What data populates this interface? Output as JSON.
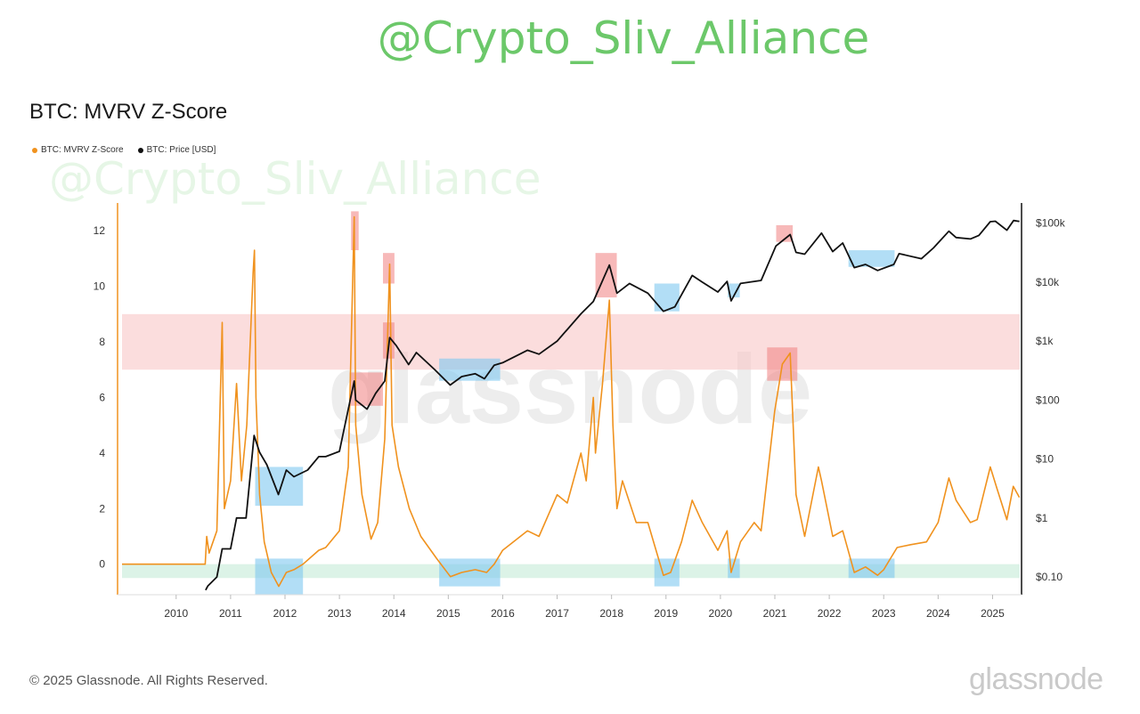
{
  "watermark": "@Crypto_Sliv_Alliance",
  "footer": {
    "copyright": "© 2025 Glassnode. All Rights Reserved.",
    "brand": "glassnode"
  },
  "chart_data": {
    "type": "line",
    "title": "BTC: MVRV Z-Score",
    "background_watermark": "glassnode",
    "legend_position": "top-left",
    "grid": false,
    "x_ticks": [
      "2010",
      "2011",
      "2012",
      "2013",
      "2014",
      "2015",
      "2016",
      "2017",
      "2018",
      "2019",
      "2020",
      "2021",
      "2022",
      "2023",
      "2024",
      "2025"
    ],
    "y_left_ticks": [
      "0",
      "2",
      "4",
      "6",
      "8",
      "10",
      "12"
    ],
    "y_left_range": [
      -1.1,
      13.0
    ],
    "y_right_ticks": [
      "$0.10",
      "$1",
      "$10",
      "$100",
      "$1k",
      "$10k",
      "$100k"
    ],
    "y_right_range_usd": [
      0.05,
      220000
    ],
    "colors": {
      "zscore": "#f0921e",
      "price": "#111111",
      "top_zone": "#f9c7c7",
      "bottom_zone": "#cdeedd",
      "top_marker": "#f08080",
      "bottom_marker": "#7ec8f0"
    },
    "zones": [
      {
        "kind": "top",
        "z_from": 7.0,
        "z_to": 9.0
      },
      {
        "kind": "bottom",
        "z_from": -0.5,
        "z_to": 0.0
      }
    ],
    "series": [
      {
        "name": "BTC: MVRV Z-Score",
        "axis": "left",
        "points": [
          [
            "2009-01-03",
            0
          ],
          [
            "2010-07-15",
            0
          ],
          [
            "2010-07-25",
            1.0
          ],
          [
            "2010-08-10",
            0.4
          ],
          [
            "2010-10-01",
            1.2
          ],
          [
            "2010-11-06",
            8.7
          ],
          [
            "2010-11-20",
            2.0
          ],
          [
            "2011-01-01",
            3.0
          ],
          [
            "2011-02-10",
            6.5
          ],
          [
            "2011-03-15",
            3.0
          ],
          [
            "2011-04-20",
            5.0
          ],
          [
            "2011-06-01",
            10.5
          ],
          [
            "2011-06-10",
            11.3
          ],
          [
            "2011-06-20",
            6.0
          ],
          [
            "2011-07-15",
            2.5
          ],
          [
            "2011-08-15",
            0.8
          ],
          [
            "2011-10-01",
            -0.3
          ],
          [
            "2011-11-20",
            -0.8
          ],
          [
            "2012-01-10",
            -0.3
          ],
          [
            "2012-03-01",
            -0.2
          ],
          [
            "2012-05-01",
            0.0
          ],
          [
            "2012-08-15",
            0.5
          ],
          [
            "2012-10-01",
            0.6
          ],
          [
            "2013-01-01",
            1.2
          ],
          [
            "2013-03-01",
            3.5
          ],
          [
            "2013-04-10",
            12.5
          ],
          [
            "2013-04-20",
            5.0
          ],
          [
            "2013-06-01",
            2.5
          ],
          [
            "2013-08-01",
            0.9
          ],
          [
            "2013-09-15",
            1.5
          ],
          [
            "2013-11-01",
            4.5
          ],
          [
            "2013-12-04",
            10.8
          ],
          [
            "2013-12-20",
            5.0
          ],
          [
            "2014-02-01",
            3.5
          ],
          [
            "2014-04-15",
            2.0
          ],
          [
            "2014-07-01",
            1.0
          ],
          [
            "2014-10-15",
            0.2
          ],
          [
            "2015-01-15",
            -0.45
          ],
          [
            "2015-04-01",
            -0.3
          ],
          [
            "2015-07-01",
            -0.2
          ],
          [
            "2015-09-15",
            -0.3
          ],
          [
            "2015-11-05",
            0.0
          ],
          [
            "2016-01-01",
            0.5
          ],
          [
            "2016-06-15",
            1.2
          ],
          [
            "2016-09-01",
            1.0
          ],
          [
            "2017-01-01",
            2.5
          ],
          [
            "2017-03-10",
            2.2
          ],
          [
            "2017-06-10",
            4.0
          ],
          [
            "2017-07-15",
            3.0
          ],
          [
            "2017-09-01",
            6.0
          ],
          [
            "2017-09-15",
            4.0
          ],
          [
            "2017-11-01",
            6.5
          ],
          [
            "2017-12-17",
            9.5
          ],
          [
            "2018-01-10",
            5.0
          ],
          [
            "2018-02-06",
            2.0
          ],
          [
            "2018-03-15",
            3.0
          ],
          [
            "2018-06-15",
            1.5
          ],
          [
            "2018-09-01",
            1.5
          ],
          [
            "2018-12-15",
            -0.4
          ],
          [
            "2019-02-01",
            -0.3
          ],
          [
            "2019-04-15",
            0.8
          ],
          [
            "2019-06-26",
            2.3
          ],
          [
            "2019-09-01",
            1.5
          ],
          [
            "2019-12-15",
            0.5
          ],
          [
            "2020-02-15",
            1.2
          ],
          [
            "2020-03-13",
            -0.3
          ],
          [
            "2020-05-15",
            0.8
          ],
          [
            "2020-08-15",
            1.5
          ],
          [
            "2020-10-01",
            1.2
          ],
          [
            "2020-12-31",
            5.5
          ],
          [
            "2021-02-20",
            7.2
          ],
          [
            "2021-04-14",
            7.6
          ],
          [
            "2021-05-23",
            2.5
          ],
          [
            "2021-07-20",
            1.0
          ],
          [
            "2021-10-20",
            3.5
          ],
          [
            "2021-11-10",
            3.0
          ],
          [
            "2022-01-24",
            1.0
          ],
          [
            "2022-04-01",
            1.2
          ],
          [
            "2022-06-18",
            -0.3
          ],
          [
            "2022-09-01",
            -0.1
          ],
          [
            "2022-11-21",
            -0.4
          ],
          [
            "2023-01-01",
            -0.2
          ],
          [
            "2023-04-01",
            0.6
          ],
          [
            "2023-07-01",
            0.7
          ],
          [
            "2023-10-15",
            0.8
          ],
          [
            "2024-01-01",
            1.5
          ],
          [
            "2024-03-13",
            3.1
          ],
          [
            "2024-05-01",
            2.3
          ],
          [
            "2024-08-05",
            1.5
          ],
          [
            "2024-09-20",
            1.6
          ],
          [
            "2024-12-17",
            3.5
          ],
          [
            "2025-02-01",
            2.7
          ],
          [
            "2025-04-07",
            1.6
          ],
          [
            "2025-05-20",
            2.8
          ],
          [
            "2025-06-30",
            2.4
          ]
        ]
      },
      {
        "name": "BTC: Price [USD]",
        "axis": "right",
        "points": [
          [
            "2010-07-18",
            0.06
          ],
          [
            "2010-08-01",
            0.07
          ],
          [
            "2010-10-01",
            0.1
          ],
          [
            "2010-11-06",
            0.3
          ],
          [
            "2011-01-01",
            0.3
          ],
          [
            "2011-02-10",
            1.0
          ],
          [
            "2011-04-15",
            1.0
          ],
          [
            "2011-06-08",
            25
          ],
          [
            "2011-07-15",
            13
          ],
          [
            "2011-09-01",
            8
          ],
          [
            "2011-11-18",
            2.5
          ],
          [
            "2012-01-10",
            6.5
          ],
          [
            "2012-03-01",
            5.0
          ],
          [
            "2012-06-01",
            6.5
          ],
          [
            "2012-08-15",
            11
          ],
          [
            "2012-10-01",
            11
          ],
          [
            "2013-01-01",
            13.5
          ],
          [
            "2013-04-10",
            210
          ],
          [
            "2013-04-20",
            100
          ],
          [
            "2013-07-05",
            70
          ],
          [
            "2013-09-01",
            130
          ],
          [
            "2013-11-01",
            210
          ],
          [
            "2013-12-04",
            1150
          ],
          [
            "2014-01-15",
            850
          ],
          [
            "2014-04-10",
            400
          ],
          [
            "2014-06-01",
            640
          ],
          [
            "2014-10-01",
            330
          ],
          [
            "2015-01-14",
            180
          ],
          [
            "2015-04-01",
            250
          ],
          [
            "2015-07-01",
            280
          ],
          [
            "2015-09-01",
            230
          ],
          [
            "2015-11-05",
            390
          ],
          [
            "2016-01-01",
            430
          ],
          [
            "2016-06-15",
            700
          ],
          [
            "2016-09-01",
            600
          ],
          [
            "2017-01-01",
            1000
          ],
          [
            "2017-06-10",
            2900
          ],
          [
            "2017-09-01",
            4700
          ],
          [
            "2017-12-17",
            19500
          ],
          [
            "2018-02-06",
            6500
          ],
          [
            "2018-05-01",
            9500
          ],
          [
            "2018-09-01",
            6500
          ],
          [
            "2018-12-15",
            3200
          ],
          [
            "2019-03-01",
            3800
          ],
          [
            "2019-06-26",
            13000
          ],
          [
            "2019-09-01",
            10000
          ],
          [
            "2019-12-15",
            6800
          ],
          [
            "2020-02-15",
            10300
          ],
          [
            "2020-03-13",
            4800
          ],
          [
            "2020-05-15",
            9500
          ],
          [
            "2020-10-01",
            10700
          ],
          [
            "2021-01-08",
            41000
          ],
          [
            "2021-04-14",
            64000
          ],
          [
            "2021-05-23",
            32000
          ],
          [
            "2021-07-20",
            29800
          ],
          [
            "2021-11-10",
            68000
          ],
          [
            "2022-01-24",
            33000
          ],
          [
            "2022-04-01",
            46000
          ],
          [
            "2022-06-18",
            17600
          ],
          [
            "2022-09-01",
            20000
          ],
          [
            "2022-11-21",
            15800
          ],
          [
            "2023-03-10",
            20000
          ],
          [
            "2023-04-14",
            30400
          ],
          [
            "2023-09-11",
            25000
          ],
          [
            "2023-12-01",
            38000
          ],
          [
            "2024-03-13",
            73000
          ],
          [
            "2024-05-01",
            57000
          ],
          [
            "2024-08-05",
            54000
          ],
          [
            "2024-10-01",
            62000
          ],
          [
            "2024-12-17",
            106000
          ],
          [
            "2025-01-20",
            108000
          ],
          [
            "2025-04-07",
            76000
          ],
          [
            "2025-05-22",
            111000
          ],
          [
            "2025-06-30",
            107000
          ]
        ]
      }
    ],
    "highlights": [
      {
        "kind": "top",
        "from": "2013-03-20",
        "to": "2013-05-10",
        "axis": "left",
        "y_from": 11.3,
        "y_to": 12.7
      },
      {
        "kind": "top",
        "from": "2013-10-20",
        "to": "2014-01-05",
        "axis": "left",
        "y_from": 10.1,
        "y_to": 11.2
      },
      {
        "kind": "top",
        "from": "2013-10-20",
        "to": "2014-01-05",
        "axis": "left",
        "y_from": 7.4,
        "y_to": 8.7
      },
      {
        "kind": "top",
        "from": "2013-03-10",
        "to": "2013-10-20",
        "axis": "left",
        "y_from": 5.7,
        "y_to": 6.9
      },
      {
        "kind": "top",
        "from": "2017-09-15",
        "to": "2018-02-05",
        "axis": "left",
        "y_from": 9.6,
        "y_to": 11.2
      },
      {
        "kind": "top",
        "from": "2021-01-10",
        "to": "2021-05-01",
        "axis": "left",
        "y_from": 11.6,
        "y_to": 12.2
      },
      {
        "kind": "top",
        "from": "2020-11-10",
        "to": "2021-06-01",
        "axis": "left",
        "y_from": 6.6,
        "y_to": 7.8
      },
      {
        "kind": "bottom",
        "from": "2011-06-15",
        "to": "2012-05-01",
        "axis": "left",
        "y_from": 2.1,
        "y_to": 3.5
      },
      {
        "kind": "bottom",
        "from": "2011-06-15",
        "to": "2012-05-01",
        "axis": "left",
        "y_from": -1.1,
        "y_to": 0.2
      },
      {
        "kind": "bottom",
        "from": "2014-11-01",
        "to": "2015-12-15",
        "axis": "left",
        "y_from": 6.6,
        "y_to": 7.4
      },
      {
        "kind": "bottom",
        "from": "2014-11-01",
        "to": "2015-12-15",
        "axis": "left",
        "y_from": -0.8,
        "y_to": 0.2
      },
      {
        "kind": "bottom",
        "from": "2018-10-15",
        "to": "2019-04-01",
        "axis": "left",
        "y_from": 9.1,
        "y_to": 10.1
      },
      {
        "kind": "bottom",
        "from": "2018-10-15",
        "to": "2019-04-01",
        "axis": "left",
        "y_from": -0.8,
        "y_to": 0.2
      },
      {
        "kind": "bottom",
        "from": "2020-02-20",
        "to": "2020-05-10",
        "axis": "left",
        "y_from": 9.6,
        "y_to": 10.1
      },
      {
        "kind": "bottom",
        "from": "2020-02-20",
        "to": "2020-05-10",
        "axis": "left",
        "y_from": -0.5,
        "y_to": 0.2
      },
      {
        "kind": "bottom",
        "from": "2022-05-10",
        "to": "2023-03-15",
        "axis": "left",
        "y_from": 10.7,
        "y_to": 11.3
      },
      {
        "kind": "bottom",
        "from": "2022-05-10",
        "to": "2023-03-15",
        "axis": "left",
        "y_from": -0.5,
        "y_to": 0.2
      }
    ]
  }
}
